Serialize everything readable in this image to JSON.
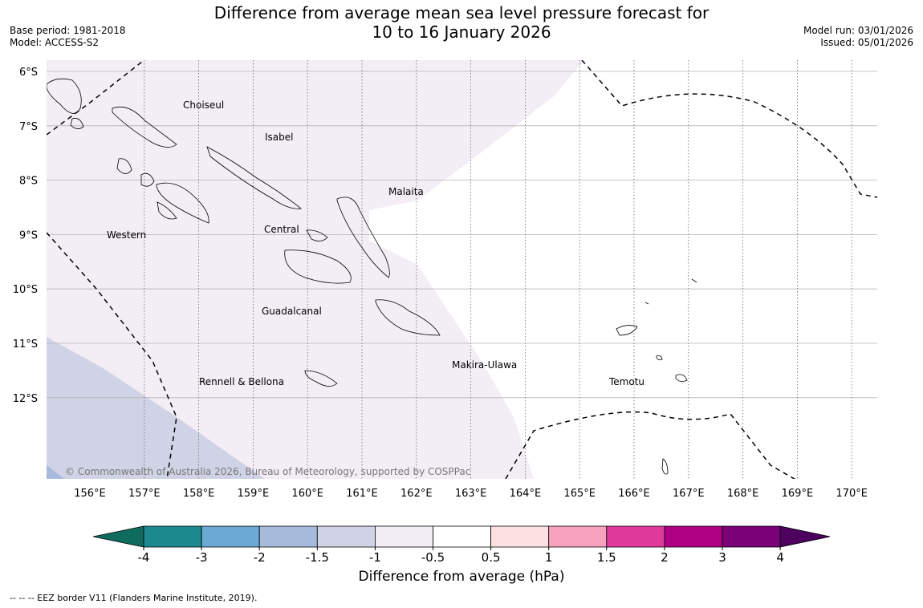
{
  "title": {
    "line1": "Difference from average mean sea level pressure forecast for",
    "line2": "10 to 16 January 2026"
  },
  "meta_left": {
    "base_period": "Base period: 1981-2018",
    "model": "Model: ACCESS-S2"
  },
  "meta_right": {
    "model_run": "Model run: 03/01/2026",
    "issued": "Issued: 05/01/2026"
  },
  "map": {
    "lon_labels": [
      "156°E",
      "157°E",
      "158°E",
      "159°E",
      "160°E",
      "161°E",
      "162°E",
      "163°E",
      "164°E",
      "165°E",
      "166°E",
      "167°E",
      "168°E",
      "169°E",
      "170°E"
    ],
    "lat_labels": [
      "6°S",
      "7°S",
      "8°S",
      "9°S",
      "10°S",
      "11°S",
      "12°S"
    ],
    "region_labels": {
      "choiseul": "Choiseul",
      "isabel": "Isabel",
      "malaita": "Malaita",
      "western": "Western",
      "central": "Central",
      "guadalcanal": "Guadalcanal",
      "rennell": "Rennell & Bellona",
      "makira": "Makira-Ulawa",
      "temotu": "Temotu"
    },
    "copyright": "© Commonwealth of Australia 2026, Bureau of Meteorology, supported by COSPPac"
  },
  "colorbar": {
    "ticks": [
      "-4",
      "-3",
      "-2",
      "-1.5",
      "-1",
      "-0.5",
      "0.5",
      "1",
      "1.5",
      "2",
      "3",
      "4"
    ],
    "colors": [
      "#1b8a8f",
      "#6aaad5",
      "#a7badb",
      "#d0d3e6",
      "#f3edf6",
      "#ffffff",
      "#fde0e0",
      "#f7a2bf",
      "#df3a9c",
      "#ad0082",
      "#7a0177"
    ],
    "under_color": "#0e6b5e",
    "over_color": "#4d0060",
    "label": "Difference from average (hPa)"
  },
  "footnote": "--  --  -- EEZ border V11 (Flanders Marine Institute, 2019)."
}
